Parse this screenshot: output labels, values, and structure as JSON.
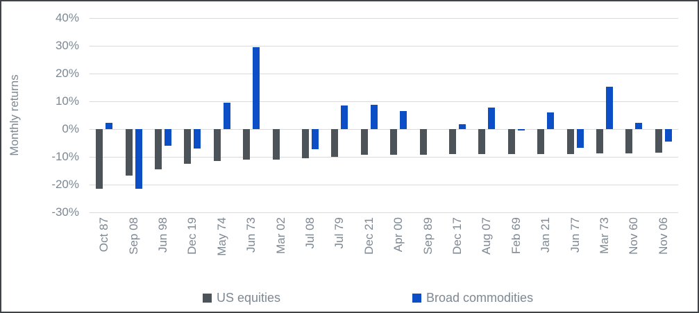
{
  "chart_data": {
    "type": "bar",
    "title": "",
    "xlabel": "",
    "ylabel": "Monthly returns",
    "ylim": [
      -30,
      40
    ],
    "ytick_step": 10,
    "yticks": [
      40,
      30,
      20,
      10,
      0,
      -10,
      -20,
      -30
    ],
    "ytick_labels": [
      "40%",
      "30%",
      "20%",
      "10%",
      "0%",
      "-10%",
      "-20%",
      "-30%"
    ],
    "grid": true,
    "legend_position": "bottom",
    "categories": [
      "Oct 87",
      "Sep 08",
      "Jun 98",
      "Dec 19",
      "May 74",
      "Jun 73",
      "Mar 02",
      "Jul 08",
      "Jul 79",
      "Dec 21",
      "Apr 00",
      "Sep 89",
      "Dec 17",
      "Aug 07",
      "Feb 69",
      "Jan 21",
      "Jun 77",
      "Mar 73",
      "Nov 60",
      "Nov 06"
    ],
    "series": [
      {
        "name": "US equities",
        "color": "#4d5459",
        "values": [
          -21.5,
          -16.8,
          -14.6,
          -12.4,
          -11.4,
          -11.1,
          -11.0,
          -10.6,
          -9.9,
          -9.2,
          -9.2,
          -9.2,
          -9.1,
          -9.0,
          -9.0,
          -8.9,
          -8.9,
          -8.7,
          -8.7,
          -8.6
        ]
      },
      {
        "name": "Broad commodities",
        "color": "#0b4ec6",
        "values": [
          2.2,
          -21.4,
          -6.1,
          -7.0,
          9.6,
          29.4,
          0,
          -7.2,
          8.6,
          8.7,
          6.5,
          0,
          1.7,
          7.8,
          -0.5,
          6.1,
          -6.7,
          15.2,
          2.2,
          -4.5
        ]
      }
    ]
  },
  "style": {
    "axis_text_color": "#7d8893",
    "gridline_color": "#d9d9d9",
    "border_color": "#3f4347",
    "background": "#ffffff"
  }
}
